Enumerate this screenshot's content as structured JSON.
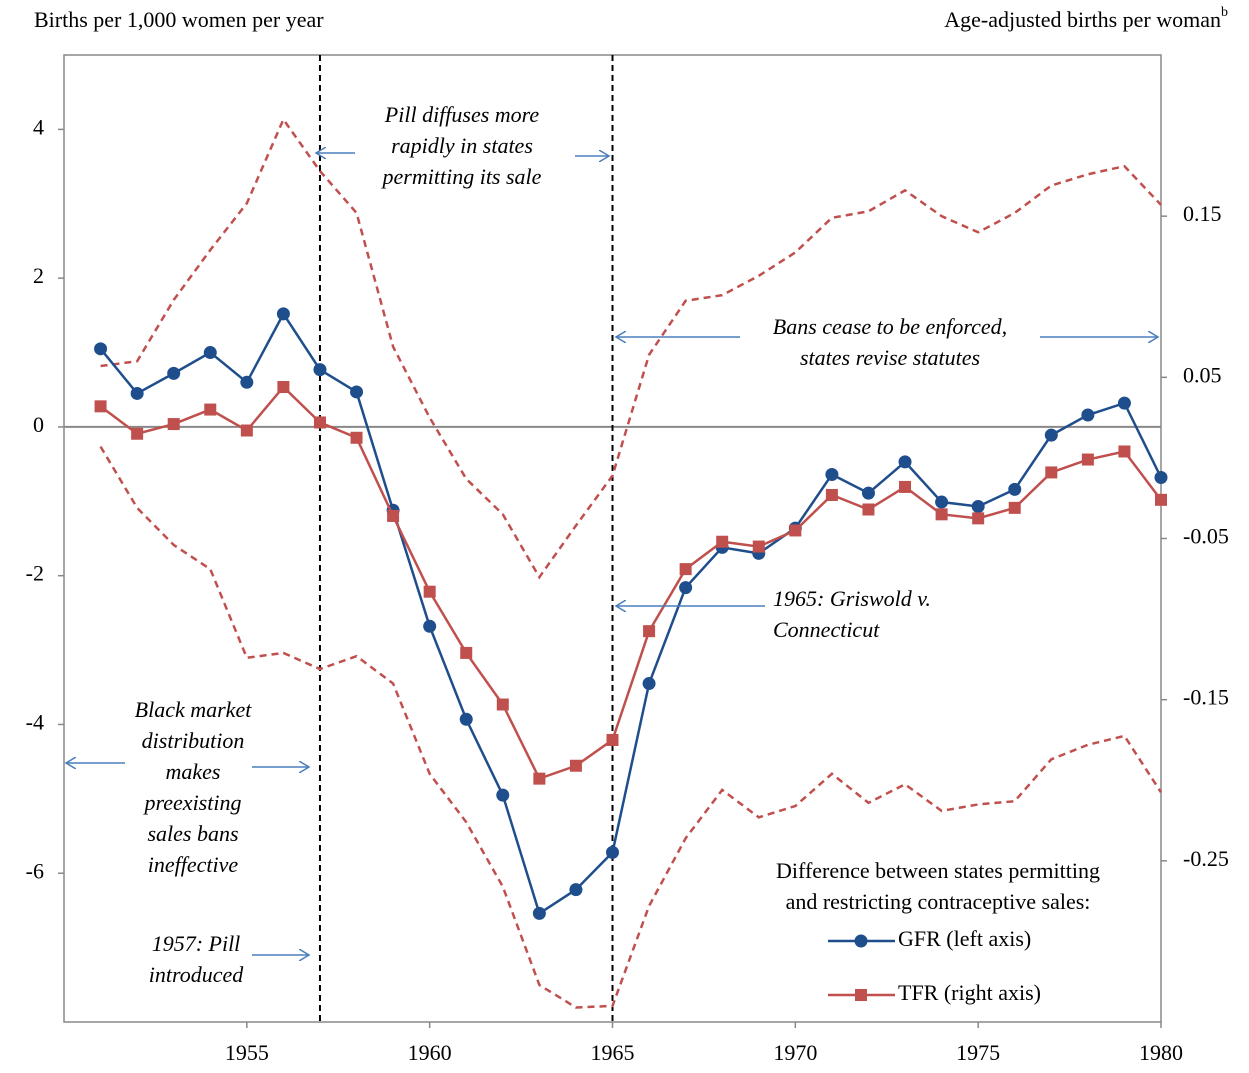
{
  "chart_data": {
    "type": "line",
    "ylabel": "Births per 1,000 women per year",
    "y2label": "Age-adjusted births per woman",
    "y2label_superscript": "b",
    "x": [
      1951,
      1952,
      1953,
      1954,
      1955,
      1956,
      1957,
      1958,
      1959,
      1960,
      1961,
      1962,
      1963,
      1964,
      1965,
      1966,
      1967,
      1968,
      1969,
      1970,
      1971,
      1972,
      1973,
      1974,
      1975,
      1976,
      1977,
      1978,
      1979,
      1980
    ],
    "series": [
      {
        "name": "GFR (left axis)",
        "color": "#1f4e8c",
        "axis": "y",
        "values": [
          1.05,
          0.45,
          0.72,
          1.0,
          0.6,
          1.52,
          0.77,
          0.47,
          -1.12,
          -2.68,
          -3.93,
          -4.95,
          -6.54,
          -6.22,
          -5.72,
          -3.45,
          -2.16,
          -1.62,
          -1.7,
          -1.36,
          -0.64,
          -0.89,
          -0.47,
          -1.01,
          -1.07,
          -0.84,
          -0.11,
          0.16,
          0.32,
          -0.68
        ]
      },
      {
        "name": "TFR (right axis)",
        "color": "#c0504d",
        "axis": "y2",
        "values": [
          0.032,
          0.015,
          0.021,
          0.03,
          0.017,
          0.044,
          0.022,
          0.0125,
          -0.036,
          -0.083,
          -0.121,
          -0.153,
          -0.199,
          -0.191,
          -0.175,
          -0.1075,
          -0.069,
          -0.052,
          -0.055,
          -0.045,
          -0.023,
          -0.032,
          -0.018,
          -0.035,
          -0.0375,
          -0.031,
          -0.009,
          -0.001,
          0.004,
          -0.026
        ]
      }
    ],
    "bands": {
      "color": "#c0504d",
      "axis": "y2",
      "upper": [
        0.057,
        0.06,
        0.098,
        0.129,
        0.158,
        0.21,
        0.178,
        0.152,
        0.069,
        0.025,
        -0.013,
        -0.035,
        -0.074,
        -0.042,
        -0.011,
        0.064,
        0.0975,
        0.101,
        0.113,
        0.1275,
        0.149,
        0.153,
        0.166,
        0.15,
        0.14,
        0.152,
        0.169,
        0.176,
        0.181,
        0.157
      ],
      "lower": [
        0.007,
        -0.031,
        -0.054,
        -0.069,
        -0.124,
        -0.121,
        -0.131,
        -0.123,
        -0.14,
        -0.196,
        -0.226,
        -0.266,
        -0.327,
        -0.341,
        -0.34,
        -0.278,
        -0.236,
        -0.206,
        -0.223,
        -0.216,
        -0.196,
        -0.214,
        -0.2025,
        -0.219,
        -0.215,
        -0.213,
        -0.187,
        -0.178,
        -0.1725,
        -0.2075
      ]
    },
    "vlines": [
      1957,
      1965
    ],
    "xlim": [
      1950,
      1980
    ],
    "xticks": [
      1955,
      1960,
      1965,
      1970,
      1975,
      1980
    ],
    "ylim": [
      -8,
      5
    ],
    "yticks": [
      -6,
      -4,
      -2,
      0,
      2,
      4
    ],
    "y2lim": [
      -0.35,
      0.25
    ],
    "y2ticks": [
      -0.25,
      -0.15,
      -0.05,
      0.05,
      0.15
    ],
    "legend_title": [
      "Difference between states permitting",
      "and restricting contraceptive sales:"
    ],
    "annotations": [
      {
        "lines": [
          "Pill diffuses more",
          "rapidly in states",
          "permitting its sale"
        ]
      },
      {
        "lines": [
          "Bans cease to be enforced,",
          "states revise statutes"
        ]
      },
      {
        "lines": [
          "1965: Griswold v.",
          "Connecticut"
        ]
      },
      {
        "lines": [
          "Black market",
          "distribution",
          "makes",
          "preexisting",
          "sales bans",
          "ineffective"
        ]
      },
      {
        "lines": [
          "1957: Pill",
          "introduced"
        ]
      }
    ]
  }
}
